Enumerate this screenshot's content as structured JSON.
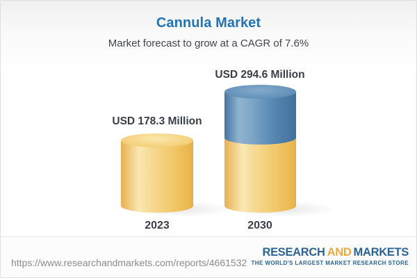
{
  "header": {
    "title": "Cannula Market",
    "subtitle": "Market forecast to grow at a CAGR of 7.6%"
  },
  "chart_data": {
    "type": "bar",
    "subtype": "3d-cylinder",
    "title": "Cannula Market",
    "subtitle": "Market forecast to grow at a CAGR of 7.6%",
    "cagr_percent": 7.6,
    "unit": "USD Million",
    "categories": [
      "2023",
      "2030"
    ],
    "values": [
      178.3,
      294.6
    ],
    "bars": [
      {
        "year": "2023",
        "label": "USD 178.3 Million",
        "value": 178.3,
        "segments": [
          {
            "name": "base",
            "color": "#f1c769"
          }
        ]
      },
      {
        "year": "2030",
        "label": "USD 294.6 Million",
        "value": 294.6,
        "segments": [
          {
            "name": "base",
            "color": "#f1c769"
          },
          {
            "name": "growth",
            "color": "#5d8db6"
          }
        ]
      }
    ],
    "layout_hints": {
      "grid": false,
      "axes_shown": false,
      "value_labels_position": "above-bar",
      "category_labels_position": "below-bar"
    }
  },
  "footer": {
    "url": "https://www.researchandmarkets.com/reports/4661532",
    "logo": {
      "word1": "RESEARCH",
      "word2": "AND",
      "word3": "MARKETS",
      "tagline": "THE WORLD'S LARGEST MARKET RESEARCH STORE"
    }
  },
  "colors": {
    "title_blue": "#2173b4",
    "text_dark": "#3a3f47",
    "bar_yellow": "#f1c769",
    "bar_blue": "#5d8db6",
    "url_gray": "#8d8d8d",
    "logo_blue": "#2c6496",
    "logo_orange": "#f0a93b"
  }
}
